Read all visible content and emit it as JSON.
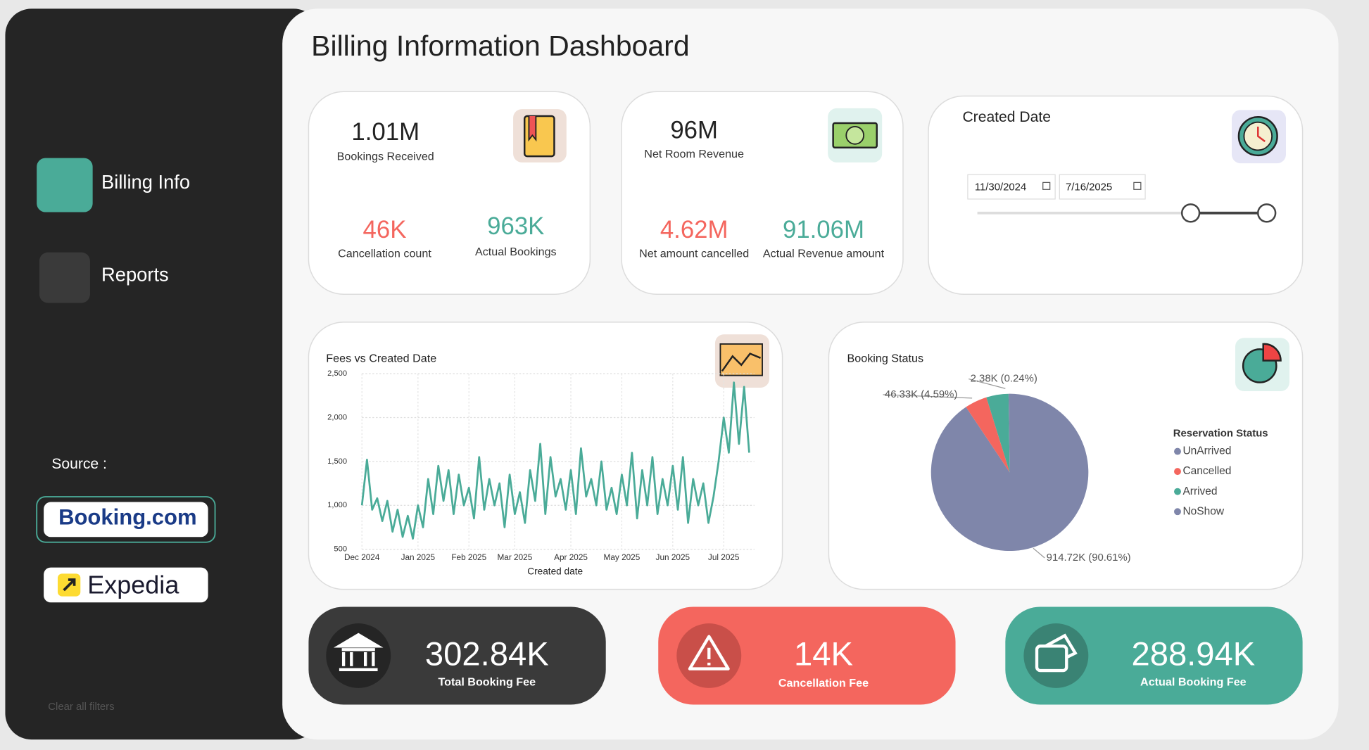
{
  "title": "Billing Information Dashboard",
  "nav": [
    "Billing Info",
    "Reports"
  ],
  "source_label": "Source :",
  "sources": [
    "Booking.com",
    "Expedia"
  ],
  "clear_filters": "Clear all filters",
  "kpi_cards": [
    {
      "value": "1.01M",
      "label": "Bookings Received",
      "sub": [
        {
          "value": "46K",
          "label": "Cancellation count"
        },
        {
          "value": "963K",
          "label": "Actual Bookings"
        }
      ]
    },
    {
      "value": "96M",
      "label": "Net Room Revenue",
      "sub": [
        {
          "value": "4.62M",
          "label": "Net amount cancelled"
        },
        {
          "value": "91.06M",
          "label": "Actual Revenue amount"
        }
      ]
    }
  ],
  "date_filter": {
    "title": "Created Date",
    "start": "11/30/2024",
    "end": "7/16/2025"
  },
  "fee_cards": [
    {
      "value": "302.84K",
      "label": "Total Booking Fee"
    },
    {
      "value": "14K",
      "label": "Cancellation Fee"
    },
    {
      "value": "288.94K",
      "label": "Actual Booking Fee"
    }
  ],
  "chart_data": [
    {
      "type": "line",
      "title": "Fees vs Created Date",
      "xlabel": "Created date",
      "categories": [
        "Dec 2024",
        null,
        null,
        null,
        null,
        null,
        null,
        null,
        null,
        null,
        null,
        "Jan 2025",
        null,
        null,
        null,
        null,
        null,
        null,
        null,
        null,
        null,
        "Feb 2025",
        null,
        null,
        null,
        null,
        null,
        null,
        null,
        null,
        "Mar 2025",
        null,
        null,
        null,
        null,
        null,
        null,
        null,
        null,
        null,
        null,
        "Apr 2025",
        null,
        null,
        null,
        null,
        null,
        null,
        null,
        null,
        null,
        "May 2025",
        null,
        null,
        null,
        null,
        null,
        null,
        null,
        null,
        null,
        "Jun 2025",
        null,
        null,
        null,
        null,
        null,
        null,
        null,
        null,
        null,
        "Jul 2025",
        null,
        null,
        null,
        null,
        null
      ],
      "values": [
        1000,
        1520,
        950,
        1080,
        820,
        1050,
        700,
        950,
        640,
        880,
        620,
        1000,
        750,
        1300,
        900,
        1450,
        1050,
        1400,
        900,
        1350,
        1000,
        1200,
        850,
        1550,
        950,
        1300,
        1000,
        1250,
        750,
        1350,
        900,
        1150,
        800,
        1400,
        1050,
        1700,
        900,
        1550,
        1100,
        1300,
        950,
        1400,
        900,
        1650,
        1100,
        1300,
        1000,
        1500,
        950,
        1200,
        900,
        1350,
        1000,
        1600,
        850,
        1400,
        1000,
        1550,
        900,
        1300,
        1000,
        1450,
        950,
        1550,
        800,
        1300,
        1000,
        1250,
        800,
        1100,
        1500,
        2000,
        1600,
        2400,
        1700,
        2350,
        1600
      ],
      "color": "#4aab98",
      "ylim": [
        500,
        2500
      ],
      "yticks": [
        500,
        {
          "value": 1000,
          "label": "1,000"
        },
        {
          "value": 1500,
          "label": "1,500"
        },
        {
          "value": 2000,
          "label": "2,000"
        },
        {
          "value": 2500,
          "label": "2,500"
        }
      ],
      "grid": true
    },
    {
      "type": "pie",
      "title": "Booking Status",
      "legend_title": "Reservation Status",
      "categories": [
        "UnArrived",
        "Cancelled",
        "Arrived",
        "NoShow"
      ],
      "values": [
        914.72,
        46.33,
        46,
        2.38
      ],
      "value_labels": [
        "914.72K (90.61%)",
        "46.33K (4.59%)",
        null,
        "2.38K (0.24%)"
      ],
      "colors": [
        "#7f86aa",
        "#f4665e",
        "#4aab98",
        "#7f86aa"
      ],
      "legend": "right"
    }
  ]
}
